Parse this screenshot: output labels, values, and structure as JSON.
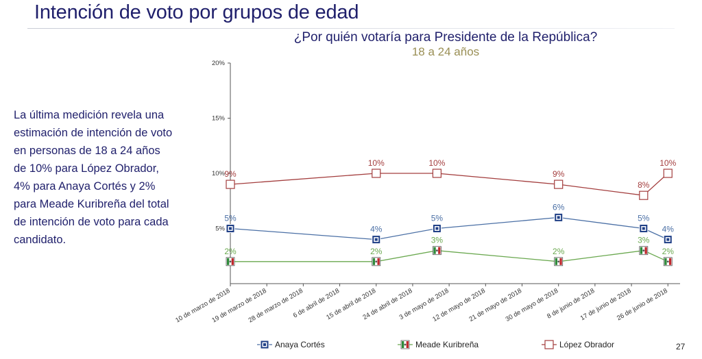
{
  "slide": {
    "title": "Intención de voto por grupos de edad",
    "body": "La última medición revela una estimación de intención de voto en personas de 18 a 24 años de 10% para López Obrador, 4% para Anaya Cortés y 2% para Meade Kuribreña del total de intención de voto para cada candidato.",
    "page_number": "27"
  },
  "chart_data": {
    "type": "line",
    "title": "¿Por quién votaría para Presidente de la República?",
    "subtitle": "18 a 24 años",
    "ylim": [
      0,
      20
    ],
    "yticks": [
      "20%",
      "15%",
      "10%",
      "5%"
    ],
    "ytick_values": [
      20,
      15,
      10,
      5
    ],
    "x_tick_labels": [
      "10 de marzo de 2018",
      "19 de marzo de 2018",
      "28 de marzo de 2018",
      "6 de abril de 2018",
      "15 de abril de 2018",
      "24 de abril de 2018",
      "3 de mayo de 2018",
      "12 de mayo de 2018",
      "21 de mayo de 2018",
      "30 de mayo de 2018",
      "8 de junio de 2018",
      "17 de junio de 2018",
      "26 de junio de 2018"
    ],
    "x_range": [
      "2018-03-10",
      "2018-06-29"
    ],
    "grid": false,
    "legend_position": "bottom",
    "series": [
      {
        "name": "Anaya Cortés",
        "color": "#4a6fa5",
        "marker": "pan-logo-icon",
        "x": [
          "2018-03-10",
          "2018-04-15",
          "2018-04-30",
          "2018-05-30",
          "2018-06-20",
          "2018-06-26"
        ],
        "values": [
          5,
          4,
          5,
          6,
          5,
          4
        ],
        "labels": [
          "5%",
          "4%",
          "5%",
          "6%",
          "5%",
          "4%"
        ]
      },
      {
        "name": "Meade Kuribreña",
        "color": "#6aa84f",
        "marker": "pri-logo-icon",
        "x": [
          "2018-03-10",
          "2018-04-15",
          "2018-04-30",
          "2018-05-30",
          "2018-06-20",
          "2018-06-26"
        ],
        "values": [
          2,
          2,
          3,
          2,
          3,
          2
        ],
        "labels": [
          "2%",
          "2%",
          "3%",
          "2%",
          "3%",
          "2%"
        ]
      },
      {
        "name": "López Obrador",
        "color": "#a33d3d",
        "marker": "hollow-square-icon",
        "x": [
          "2018-03-10",
          "2018-04-15",
          "2018-04-30",
          "2018-05-30",
          "2018-06-20",
          "2018-06-26"
        ],
        "values": [
          9,
          10,
          10,
          9,
          8,
          10
        ],
        "labels": [
          "9%",
          "10%",
          "10%",
          "9%",
          "8%",
          "10%"
        ]
      }
    ]
  }
}
